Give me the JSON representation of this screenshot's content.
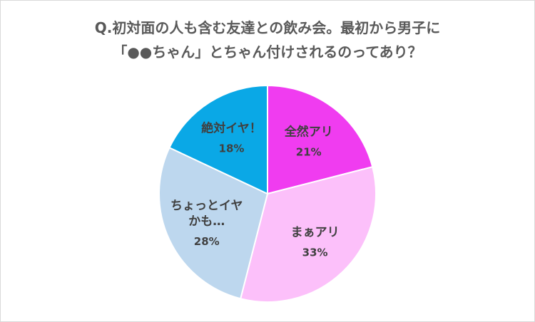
{
  "chart_data": {
    "type": "pie",
    "title": "Q.初対面の人も含む友達との飲み会。最初から男子に",
    "subtitle": "「●●ちゃん」とちゃん付けされるのってあり？",
    "slices": [
      {
        "label": [
          "全然アリ"
        ],
        "value": 21,
        "value_label": "21%",
        "color": "#f03cf0"
      },
      {
        "label": [
          "まぁアリ"
        ],
        "value": 33,
        "value_label": "33%",
        "color": "#fcc0fa"
      },
      {
        "label": [
          "ちょっとイヤ",
          "かも…"
        ],
        "value": 28,
        "value_label": "28%",
        "color": "#bdd7ee"
      },
      {
        "label": [
          "絶対イヤ！"
        ],
        "value": 18,
        "value_label": "18%",
        "color": "#0aa8e6"
      }
    ],
    "start_angle": "12 o'clock",
    "direction": "clockwise"
  }
}
